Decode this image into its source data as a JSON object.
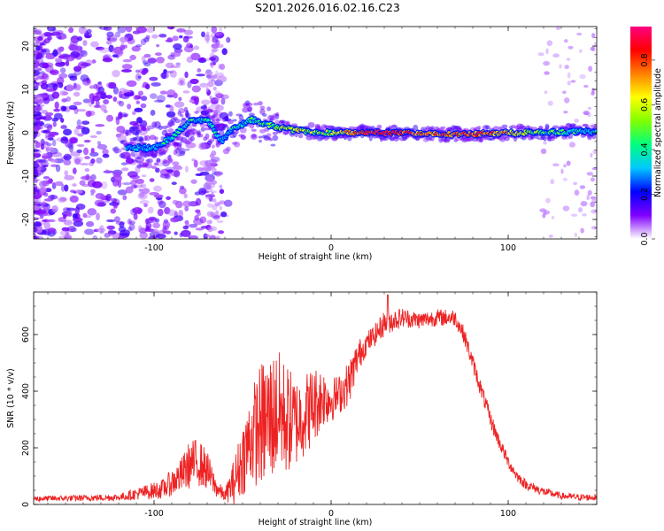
{
  "figure_title": "S201.2026.016.02.16.C23",
  "chart_data": [
    {
      "type": "heatmap",
      "title": "S201.2026.016.02.16.C23",
      "xlabel": "Height of straight line (km)",
      "ylabel": "Frequency (Hz)",
      "xlim": [
        -168,
        150
      ],
      "ylim": [
        -24.5,
        24.5
      ],
      "x_ticks": [
        -100,
        0,
        100
      ],
      "x_tick_labels": [
        "-100",
        "0",
        "100"
      ],
      "y_ticks": [
        -20,
        -10,
        0,
        10,
        20
      ],
      "y_tick_labels": [
        "-20",
        "-10",
        "0",
        "10",
        "20"
      ],
      "colorbar": {
        "label": "Normalized spectral amplitude",
        "range": [
          0.0,
          0.95
        ],
        "ticks": [
          0.0,
          0.2,
          0.4,
          0.6,
          0.8
        ],
        "tick_labels": [
          "0.0",
          "0.2",
          "0.4",
          "0.6",
          "0.8"
        ],
        "colormap": [
          "#ffffff",
          "#8000ff",
          "#0000ff",
          "#00c8ff",
          "#00ff80",
          "#80ff00",
          "#ffff00",
          "#ff8000",
          "#ff0000",
          "#ff0080"
        ]
      },
      "ridge": [
        {
          "x": -110,
          "y": -3.5,
          "amp": 0.3
        },
        {
          "x": -100,
          "y": -3.5,
          "amp": 0.3
        },
        {
          "x": -90,
          "y": -1.0,
          "amp": 0.35
        },
        {
          "x": -80,
          "y": 2.5,
          "amp": 0.4
        },
        {
          "x": -70,
          "y": 3.0,
          "amp": 0.4
        },
        {
          "x": -62,
          "y": -2.0,
          "amp": 0.3
        },
        {
          "x": -55,
          "y": 1.0,
          "amp": 0.35
        },
        {
          "x": -45,
          "y": 3.0,
          "amp": 0.4
        },
        {
          "x": -35,
          "y": 1.8,
          "amp": 0.45
        },
        {
          "x": -20,
          "y": 0.5,
          "amp": 0.6
        },
        {
          "x": 0,
          "y": 0.0,
          "amp": 0.55
        },
        {
          "x": 20,
          "y": 0.0,
          "amp": 0.85
        },
        {
          "x": 40,
          "y": 0.0,
          "amp": 0.8
        },
        {
          "x": 60,
          "y": -0.3,
          "amp": 0.75
        },
        {
          "x": 80,
          "y": -0.3,
          "amp": 0.8
        },
        {
          "x": 100,
          "y": 0.0,
          "amp": 0.7
        },
        {
          "x": 120,
          "y": 0.0,
          "amp": 0.45
        },
        {
          "x": 140,
          "y": 0.3,
          "amp": 0.35
        },
        {
          "x": 150,
          "y": 0.3,
          "amp": 0.3
        }
      ]
    },
    {
      "type": "line",
      "xlabel": "Height of straight line (km)",
      "ylabel": "SNR (10 * v/v)",
      "xlim": [
        -168,
        150
      ],
      "ylim": [
        0,
        750
      ],
      "x_ticks": [
        -100,
        0,
        100
      ],
      "x_tick_labels": [
        "-100",
        "0",
        "100"
      ],
      "y_ticks": [
        0,
        200,
        400,
        600
      ],
      "y_tick_labels": [
        "0",
        "200",
        "400",
        "600"
      ],
      "color": "#ee2222",
      "envelope": {
        "x": [
          -168,
          -120,
          -95,
          -85,
          -80,
          -75,
          -70,
          -65,
          -60,
          -55,
          -50,
          -45,
          -40,
          -35,
          -30,
          -25,
          -20,
          -15,
          -10,
          -5,
          0,
          5,
          10,
          15,
          20,
          25,
          30,
          40,
          50,
          60,
          70,
          75,
          80,
          85,
          90,
          95,
          100,
          105,
          110,
          120,
          130,
          140,
          150
        ],
        "y": [
          20,
          25,
          55,
          100,
          140,
          150,
          120,
          60,
          30,
          80,
          160,
          240,
          280,
          300,
          330,
          300,
          290,
          320,
          350,
          380,
          370,
          390,
          430,
          520,
          570,
          600,
          640,
          660,
          650,
          660,
          660,
          600,
          500,
          400,
          300,
          220,
          150,
          100,
          70,
          45,
          30,
          25,
          25
        ]
      },
      "noise": {
        "x": [
          -168,
          -120,
          -95,
          -85,
          -80,
          -75,
          -70,
          -65,
          -60,
          -55,
          -50,
          -45,
          -40,
          -35,
          -30,
          -25,
          -20,
          -15,
          -10,
          -5,
          0,
          5,
          10,
          15,
          20,
          25,
          30,
          40,
          50,
          60,
          70,
          75,
          80,
          85,
          90,
          95,
          100,
          105,
          110,
          120,
          130,
          140,
          150
        ],
        "amp": [
          10,
          12,
          35,
          60,
          85,
          85,
          70,
          35,
          20,
          80,
          130,
          170,
          220,
          240,
          220,
          200,
          160,
          150,
          140,
          110,
          80,
          70,
          80,
          60,
          40,
          40,
          45,
          35,
          30,
          30,
          30,
          30,
          30,
          30,
          30,
          25,
          22,
          20,
          18,
          15,
          12,
          12,
          12
        ]
      },
      "peak": {
        "x": 32,
        "y": 740
      }
    }
  ]
}
